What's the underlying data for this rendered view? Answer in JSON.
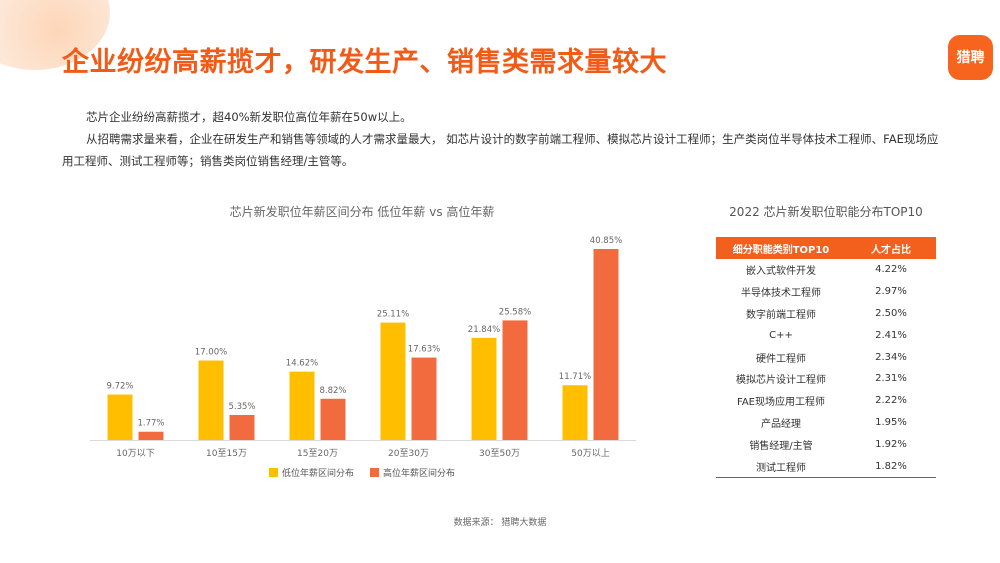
{
  "header": {
    "title": "企业纷纷高薪揽才，研发生产、销售类需求量较大",
    "logo_text": "猎聘"
  },
  "intro": {
    "paragraph1": "芯片企业纷纷高薪揽才，超40%新发职位高位年薪在50w以上。",
    "paragraph2": "从招聘需求量来看，企业在研发生产和销售等领域的人才需求量最大， 如芯片设计的数字前端工程师、模拟芯片设计工程师；生产类岗位半导体技术工程师、FAE现场应用工程师、测试工程师等；销售类岗位销售经理/主管等。"
  },
  "chart_data": {
    "type": "bar",
    "title": "芯片新发职位年薪区间分布 低位年薪 vs 高位年薪",
    "categories": [
      "10万以下",
      "10至15万",
      "15至20万",
      "20至30万",
      "30至50万",
      "50万以上"
    ],
    "series": [
      {
        "name": "低位年薪区间分布",
        "values": [
          9.72,
          17.0,
          14.62,
          25.11,
          21.84,
          11.71
        ],
        "labels": [
          "9.72%",
          "17.00%",
          "14.62%",
          "25.11%",
          "21.84%",
          "11.71%"
        ],
        "color": "#ffbf00"
      },
      {
        "name": "高位年薪区间分布",
        "values": [
          1.77,
          5.35,
          8.82,
          17.63,
          25.58,
          40.85
        ],
        "labels": [
          "1.77%",
          "5.35%",
          "8.82%",
          "17.63%",
          "25.58%",
          "40.85%"
        ],
        "color": "#f26b3f"
      }
    ],
    "ylim": [
      0,
      45
    ],
    "grid": false,
    "legend": "bottom"
  },
  "table": {
    "title": "2022 芯片新发职位职能分布TOP10",
    "header_color": "#f35f1c",
    "headers": [
      "细分职能类别TOP10",
      "人才占比"
    ],
    "rows": [
      [
        "嵌入式软件开发",
        "4.22%"
      ],
      [
        "半导体技术工程师",
        "2.97%"
      ],
      [
        "数字前端工程师",
        "2.50%"
      ],
      [
        "C++",
        "2.41%"
      ],
      [
        "硬件工程师",
        "2.34%"
      ],
      [
        "模拟芯片设计工程师",
        "2.31%"
      ],
      [
        "FAE现场应用工程师",
        "2.22%"
      ],
      [
        "产品经理",
        "1.95%"
      ],
      [
        "销售经理/主管",
        "1.92%"
      ],
      [
        "测试工程师",
        "1.82%"
      ]
    ]
  },
  "footer": {
    "source": "数据来源：  猎聘大数据"
  }
}
